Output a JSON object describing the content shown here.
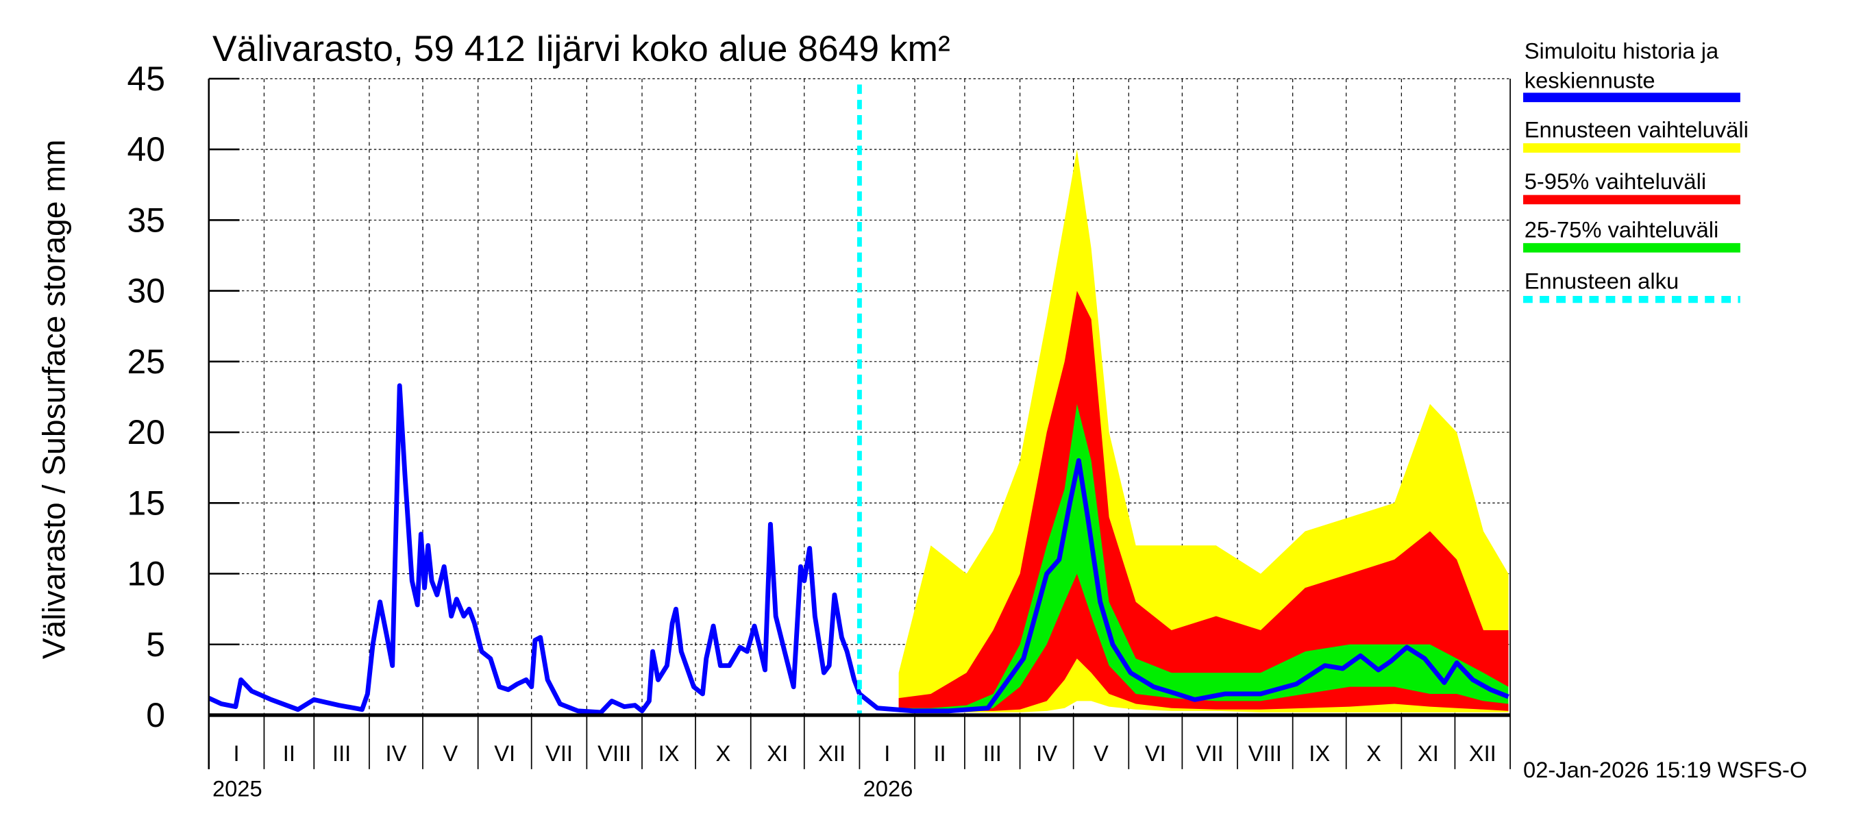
{
  "chart_data": {
    "type": "area",
    "title": "Välivarasto, 59 412 Iijärvi koko alue 8649 km²",
    "ylabel": "Välivarasto / Subsurface storage  mm",
    "ylim": [
      0,
      45
    ],
    "yticks": [
      0,
      5,
      10,
      15,
      20,
      25,
      30,
      35,
      40,
      45
    ],
    "xlim": [
      "2025-01-01",
      "2026-12-31"
    ],
    "grid": true,
    "legend_position": "right",
    "month_labels": [
      "I",
      "II",
      "III",
      "IV",
      "V",
      "VI",
      "VII",
      "VIII",
      "IX",
      "X",
      "XI",
      "XII"
    ],
    "year_labels": [
      "2025",
      "2026"
    ],
    "forecast_start": "2026-01-01",
    "timestamp": "02-Jan-2026 15:19 WSFS-O",
    "colors": {
      "history": "#0000ff",
      "yellow": "#ffff00",
      "red": "#ff0000",
      "green": "#00ee00",
      "forecast_start": "#00ffff"
    },
    "legend": [
      {
        "label": "Simuloitu historia ja keskiennuste",
        "line1": "Simuloitu historia ja",
        "line2": "keskiennuste",
        "color": "#0000ff",
        "style": "solid"
      },
      {
        "label": "Ennusteen vaihteluväli",
        "color": "#ffff00",
        "style": "solid"
      },
      {
        "label": "5-95% vaihteluväli",
        "color": "#ff0000",
        "style": "solid"
      },
      {
        "label": "25-75% vaihteluväli",
        "color": "#00ee00",
        "style": "solid"
      },
      {
        "label": "Ennusteen alku",
        "color": "#00ffff",
        "style": "dotted"
      }
    ],
    "history": [
      [
        "2025-01-01",
        1.2
      ],
      [
        "2025-01-08",
        0.8
      ],
      [
        "2025-01-16",
        0.6
      ],
      [
        "2025-01-19",
        2.5
      ],
      [
        "2025-01-25",
        1.7
      ],
      [
        "2025-02-05",
        1.1
      ],
      [
        "2025-02-20",
        0.4
      ],
      [
        "2025-03-01",
        1.1
      ],
      [
        "2025-03-15",
        0.7
      ],
      [
        "2025-03-28",
        0.4
      ],
      [
        "2025-03-31",
        1.5
      ],
      [
        "2025-04-03",
        5
      ],
      [
        "2025-04-07",
        8
      ],
      [
        "2025-04-11",
        5.5
      ],
      [
        "2025-04-14",
        3.5
      ],
      [
        "2025-04-18",
        23.3
      ],
      [
        "2025-04-21",
        17
      ],
      [
        "2025-04-25",
        9.5
      ],
      [
        "2025-04-28",
        7.8
      ],
      [
        "2025-04-30",
        12.8
      ],
      [
        "2025-05-02",
        9
      ],
      [
        "2025-05-04",
        12
      ],
      [
        "2025-05-06",
        9.5
      ],
      [
        "2025-05-09",
        8.5
      ],
      [
        "2025-05-13",
        10.5
      ],
      [
        "2025-05-17",
        7
      ],
      [
        "2025-05-20",
        8.2
      ],
      [
        "2025-05-24",
        7
      ],
      [
        "2025-05-27",
        7.5
      ],
      [
        "2025-05-30",
        6.5
      ],
      [
        "2025-06-03",
        4.5
      ],
      [
        "2025-06-08",
        4
      ],
      [
        "2025-06-13",
        2
      ],
      [
        "2025-06-18",
        1.8
      ],
      [
        "2025-06-23",
        2.2
      ],
      [
        "2025-06-28",
        2.5
      ],
      [
        "2025-07-01",
        2
      ],
      [
        "2025-07-03",
        5.3
      ],
      [
        "2025-07-06",
        5.5
      ],
      [
        "2025-07-10",
        2.5
      ],
      [
        "2025-07-17",
        0.8
      ],
      [
        "2025-07-27",
        0.3
      ],
      [
        "2025-08-09",
        0.2
      ],
      [
        "2025-08-15",
        1
      ],
      [
        "2025-08-22",
        0.6
      ],
      [
        "2025-08-28",
        0.7
      ],
      [
        "2025-09-01",
        0.3
      ],
      [
        "2025-09-05",
        1
      ],
      [
        "2025-09-07",
        4.5
      ],
      [
        "2025-09-10",
        2.5
      ],
      [
        "2025-09-15",
        3.5
      ],
      [
        "2025-09-18",
        6.5
      ],
      [
        "2025-09-20",
        7.5
      ],
      [
        "2025-09-23",
        4.5
      ],
      [
        "2025-09-30",
        2
      ],
      [
        "2025-10-05",
        1.5
      ],
      [
        "2025-10-07",
        4
      ],
      [
        "2025-10-11",
        6.3
      ],
      [
        "2025-10-15",
        3.5
      ],
      [
        "2025-10-20",
        3.5
      ],
      [
        "2025-10-26",
        4.8
      ],
      [
        "2025-10-30",
        4.5
      ],
      [
        "2025-11-03",
        6.3
      ],
      [
        "2025-11-06",
        4.8
      ],
      [
        "2025-11-09",
        3.2
      ],
      [
        "2025-11-12",
        13.5
      ],
      [
        "2025-11-15",
        7
      ],
      [
        "2025-11-20",
        4.5
      ],
      [
        "2025-11-25",
        2
      ],
      [
        "2025-11-29",
        10.5
      ],
      [
        "2025-12-01",
        9.5
      ],
      [
        "2025-12-04",
        11.8
      ],
      [
        "2025-12-07",
        7
      ],
      [
        "2025-12-12",
        3
      ],
      [
        "2025-12-15",
        3.5
      ],
      [
        "2025-12-18",
        8.5
      ],
      [
        "2025-12-22",
        5.5
      ],
      [
        "2025-12-25",
        4.5
      ],
      [
        "2025-12-29",
        2.5
      ],
      [
        "2026-01-01",
        1.5
      ]
    ],
    "forecast_median": [
      [
        "2026-01-01",
        1.5
      ],
      [
        "2026-01-11",
        0.5
      ],
      [
        "2026-01-31",
        0.3
      ],
      [
        "2026-02-20",
        0.3
      ],
      [
        "2026-03-14",
        0.5
      ],
      [
        "2026-04-03",
        4
      ],
      [
        "2026-04-16",
        10
      ],
      [
        "2026-04-23",
        11
      ],
      [
        "2026-04-29",
        15
      ],
      [
        "2026-05-04",
        18
      ],
      [
        "2026-05-09",
        14
      ],
      [
        "2026-05-16",
        8
      ],
      [
        "2026-05-23",
        5
      ],
      [
        "2026-06-02",
        3
      ],
      [
        "2026-06-15",
        2
      ],
      [
        "2026-06-28",
        1.5
      ],
      [
        "2026-07-08",
        1.1
      ],
      [
        "2026-07-25",
        1.5
      ],
      [
        "2026-08-14",
        1.5
      ],
      [
        "2026-09-03",
        2.2
      ],
      [
        "2026-09-19",
        3.5
      ],
      [
        "2026-09-29",
        3.3
      ],
      [
        "2026-10-09",
        4.2
      ],
      [
        "2026-10-19",
        3.2
      ],
      [
        "2026-10-26",
        3.8
      ],
      [
        "2026-11-04",
        4.8
      ],
      [
        "2026-11-14",
        4
      ],
      [
        "2026-11-25",
        2.3
      ],
      [
        "2026-12-02",
        3.7
      ],
      [
        "2026-12-11",
        2.5
      ],
      [
        "2026-12-21",
        1.8
      ],
      [
        "2026-12-31",
        1.3
      ]
    ],
    "forecast_bands_columns": [
      "date",
      "min",
      "p5",
      "p25",
      "p75",
      "p95",
      "max"
    ],
    "forecast_bands": [
      [
        "2026-01-23",
        0.2,
        0.3,
        0.4,
        0.5,
        1.2,
        3
      ],
      [
        "2026-02-10",
        0.2,
        0.3,
        0.4,
        0.5,
        1.5,
        12
      ],
      [
        "2026-03-02",
        0.2,
        0.3,
        0.4,
        0.7,
        3,
        10
      ],
      [
        "2026-03-17",
        0.2,
        0.3,
        0.5,
        1.5,
        6,
        13
      ],
      [
        "2026-04-01",
        0.2,
        0.4,
        2,
        5,
        10,
        18
      ],
      [
        "2026-04-16",
        0.3,
        1,
        5,
        12,
        20,
        28
      ],
      [
        "2026-04-26",
        0.5,
        2.5,
        8,
        16,
        25,
        35
      ],
      [
        "2026-05-03",
        1,
        4,
        10,
        22,
        30,
        40
      ],
      [
        "2026-05-11",
        1,
        3,
        7,
        18,
        28,
        33
      ],
      [
        "2026-05-21",
        0.6,
        1.5,
        3.5,
        8,
        14,
        20
      ],
      [
        "2026-06-05",
        0.4,
        0.8,
        1.5,
        4,
        8,
        12
      ],
      [
        "2026-06-25",
        0.3,
        0.5,
        1.2,
        3,
        6,
        12
      ],
      [
        "2026-07-20",
        0.3,
        0.4,
        1,
        3,
        7,
        12
      ],
      [
        "2026-08-14",
        0.2,
        0.4,
        1,
        3,
        6,
        10
      ],
      [
        "2026-09-08",
        0.2,
        0.5,
        1.5,
        4.5,
        9,
        13
      ],
      [
        "2026-10-03",
        0.2,
        0.6,
        2,
        5,
        10,
        14
      ],
      [
        "2026-10-28",
        0.2,
        0.8,
        2,
        5,
        11,
        15
      ],
      [
        "2026-11-17",
        0.2,
        0.6,
        1.5,
        5,
        13,
        22
      ],
      [
        "2026-12-02",
        0.2,
        0.5,
        1.5,
        4,
        11,
        20
      ],
      [
        "2026-12-17",
        0.2,
        0.4,
        1,
        3,
        6,
        13
      ],
      [
        "2026-12-31",
        0.2,
        0.3,
        0.8,
        2,
        6,
        10
      ]
    ]
  }
}
